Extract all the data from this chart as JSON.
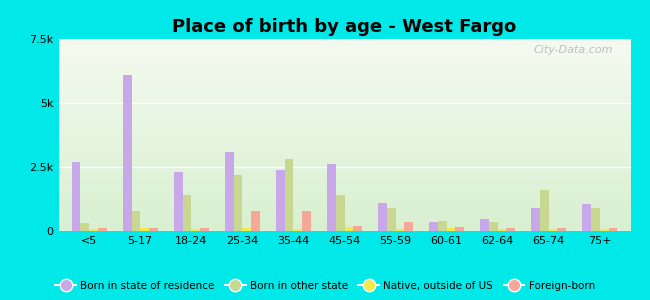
{
  "title": "Place of birth by age - West Fargo",
  "categories": [
    "<5",
    "5-17",
    "18-24",
    "25-34",
    "35-44",
    "45-54",
    "55-59",
    "60-61",
    "62-64",
    "65-74",
    "75+"
  ],
  "series": {
    "Born in state of residence": [
      2700,
      6100,
      2300,
      3100,
      2400,
      2600,
      1100,
      350,
      450,
      900,
      1050
    ],
    "Born in other state": [
      300,
      800,
      1400,
      2200,
      2800,
      1400,
      900,
      400,
      350,
      1600,
      900
    ],
    "Native, outside of US": [
      80,
      120,
      80,
      120,
      80,
      150,
      80,
      120,
      80,
      80,
      80
    ],
    "Foreign-born": [
      100,
      100,
      100,
      800,
      800,
      200,
      350,
      150,
      100,
      100,
      100
    ]
  },
  "colors": {
    "Born in state of residence": "#c8a8e8",
    "Born in other state": "#c8d890",
    "Native, outside of US": "#f5e84a",
    "Foreign-born": "#f5a898"
  },
  "ylim": [
    0,
    7500
  ],
  "yticks": [
    0,
    2500,
    5000,
    7500
  ],
  "ytick_labels": [
    "0",
    "2.5k",
    "5k",
    "7.5k"
  ],
  "background_color": "#00e8e8",
  "watermark": "City-Data.com",
  "legend_labels": [
    "Born in state of residence",
    "Born in other state",
    "Native, outside of US",
    "Foreign-born"
  ]
}
